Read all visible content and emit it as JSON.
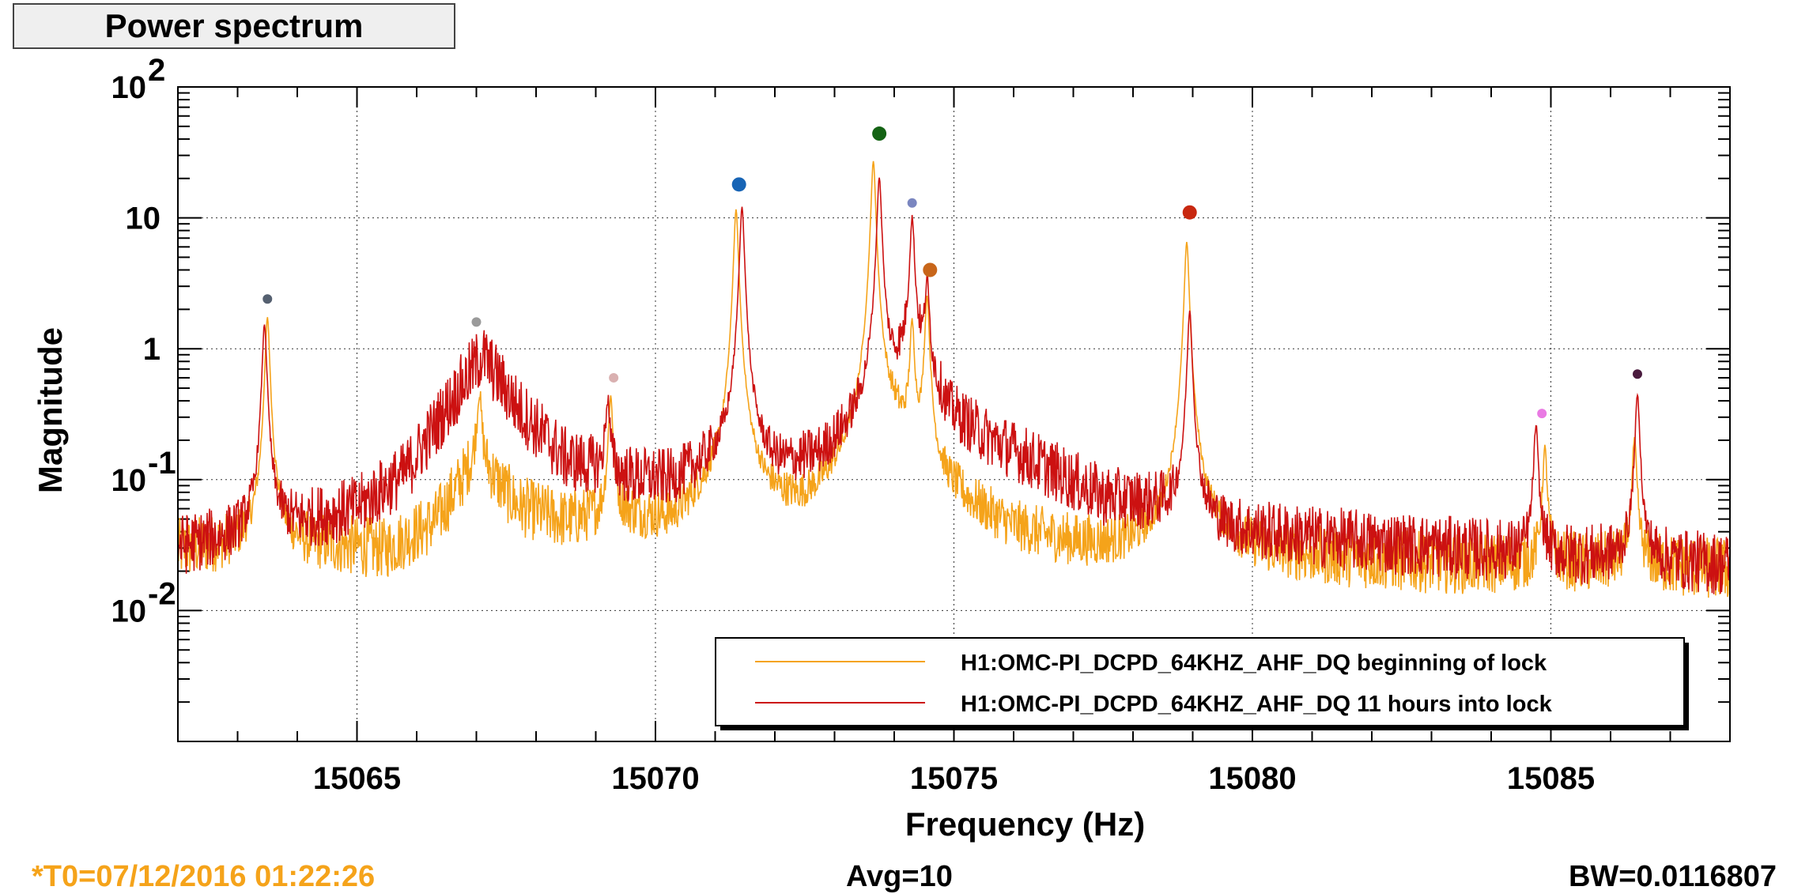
{
  "title": "Power spectrum",
  "footer": {
    "t0": "*T0=07/12/2016 01:22:26",
    "avg": "Avg=10",
    "bw": "BW=0.0116807"
  },
  "chart_data": {
    "type": "line",
    "title": "Power spectrum",
    "xlabel": "Frequency (Hz)",
    "ylabel": "Magnitude",
    "x_scale": "linear",
    "y_scale": "log",
    "xlim": [
      15062.0,
      15088.0
    ],
    "ylim": [
      0.001,
      100
    ],
    "x_ticks": [
      15065,
      15070,
      15075,
      15080,
      15085
    ],
    "x_tick_labels": [
      "15065",
      "15070",
      "15075",
      "15080",
      "15085"
    ],
    "y_ticks": [
      0.01,
      0.1,
      1,
      10,
      100
    ],
    "y_tick_labels": [
      {
        "base": "10",
        "exp": "-2"
      },
      {
        "base": "10",
        "exp": "-1"
      },
      {
        "base": "1",
        "exp": ""
      },
      {
        "base": "10",
        "exp": ""
      },
      {
        "base": "10",
        "exp": "2"
      }
    ],
    "grid": true,
    "legend_position": "bottom-right",
    "series": [
      {
        "name": "H1:OMC-PI_DCPD_64KHZ_AHF_DQ beginning of lock",
        "color": "#f5a31a",
        "baseline": [
          [
            15062.0,
            0.028
          ],
          [
            15063.0,
            0.03
          ],
          [
            15064.5,
            0.03
          ],
          [
            15065.5,
            0.028
          ],
          [
            15066.3,
            0.045
          ],
          [
            15067.0,
            0.14
          ],
          [
            15067.7,
            0.06
          ],
          [
            15068.5,
            0.045
          ],
          [
            15069.5,
            0.05
          ],
          [
            15070.3,
            0.04
          ],
          [
            15070.9,
            0.06
          ],
          [
            15071.8,
            0.05
          ],
          [
            15072.5,
            0.045
          ],
          [
            15073.4,
            0.08
          ],
          [
            15074.0,
            0.2
          ],
          [
            15074.6,
            0.08
          ],
          [
            15075.3,
            0.05
          ],
          [
            15076.0,
            0.035
          ],
          [
            15077.0,
            0.028
          ],
          [
            15078.0,
            0.026
          ],
          [
            15079.5,
            0.026
          ],
          [
            15081.0,
            0.024
          ],
          [
            15083.0,
            0.022
          ],
          [
            15085.0,
            0.022
          ],
          [
            15086.5,
            0.022
          ],
          [
            15088.0,
            0.02
          ]
        ],
        "peaks": [
          [
            15063.5,
            1.7
          ],
          [
            15067.05,
            0.33
          ],
          [
            15069.25,
            0.38
          ],
          [
            15071.35,
            11.5
          ],
          [
            15073.65,
            27.0
          ],
          [
            15074.3,
            1.4
          ],
          [
            15074.55,
            2.4
          ],
          [
            15078.9,
            6.5
          ],
          [
            15084.9,
            0.15
          ],
          [
            15086.4,
            0.18
          ]
        ]
      },
      {
        "name": "H1:OMC-PI_DCPD_64KHZ_AHF_DQ 11 hours into lock",
        "color": "#cc1111",
        "baseline": [
          [
            15062.0,
            0.03
          ],
          [
            15063.0,
            0.035
          ],
          [
            15064.0,
            0.045
          ],
          [
            15065.0,
            0.06
          ],
          [
            15065.8,
            0.11
          ],
          [
            15066.5,
            0.35
          ],
          [
            15067.1,
            0.9
          ],
          [
            15067.7,
            0.35
          ],
          [
            15068.5,
            0.14
          ],
          [
            15069.5,
            0.1
          ],
          [
            15070.3,
            0.09
          ],
          [
            15071.0,
            0.12
          ],
          [
            15072.0,
            0.1
          ],
          [
            15072.8,
            0.13
          ],
          [
            15073.5,
            0.25
          ],
          [
            15074.3,
            1.0
          ],
          [
            15074.9,
            0.3
          ],
          [
            15075.5,
            0.2
          ],
          [
            15076.5,
            0.12
          ],
          [
            15077.5,
            0.07
          ],
          [
            15078.5,
            0.06
          ],
          [
            15079.5,
            0.04
          ],
          [
            15081.0,
            0.035
          ],
          [
            15083.0,
            0.03
          ],
          [
            15085.0,
            0.026
          ],
          [
            15086.5,
            0.024
          ],
          [
            15088.0,
            0.022
          ]
        ],
        "peaks": [
          [
            15063.45,
            1.5
          ],
          [
            15069.2,
            0.3
          ],
          [
            15071.45,
            12.0
          ],
          [
            15073.75,
            20.0
          ],
          [
            15074.3,
            9.0
          ],
          [
            15074.55,
            2.6
          ],
          [
            15078.95,
            1.9
          ],
          [
            15084.75,
            0.23
          ],
          [
            15086.45,
            0.42
          ]
        ]
      }
    ],
    "markers": [
      {
        "x": 15063.5,
        "y": 2.4,
        "color": "#556070",
        "size": "small"
      },
      {
        "x": 15067.0,
        "y": 1.6,
        "color": "#9a9a9a",
        "size": "small"
      },
      {
        "x": 15069.3,
        "y": 0.6,
        "color": "#d9b0b0",
        "size": "small"
      },
      {
        "x": 15071.4,
        "y": 18.0,
        "color": "#1764b5",
        "size": "large"
      },
      {
        "x": 15073.75,
        "y": 44.0,
        "color": "#146314",
        "size": "large"
      },
      {
        "x": 15074.3,
        "y": 13.0,
        "color": "#7a86c0",
        "size": "small"
      },
      {
        "x": 15074.6,
        "y": 4.0,
        "color": "#c8661a",
        "size": "large"
      },
      {
        "x": 15078.95,
        "y": 11.0,
        "color": "#c82810",
        "size": "large"
      },
      {
        "x": 15084.85,
        "y": 0.32,
        "color": "#e97ae3",
        "size": "small"
      },
      {
        "x": 15086.45,
        "y": 0.64,
        "color": "#4a1b3e",
        "size": "small"
      }
    ]
  }
}
